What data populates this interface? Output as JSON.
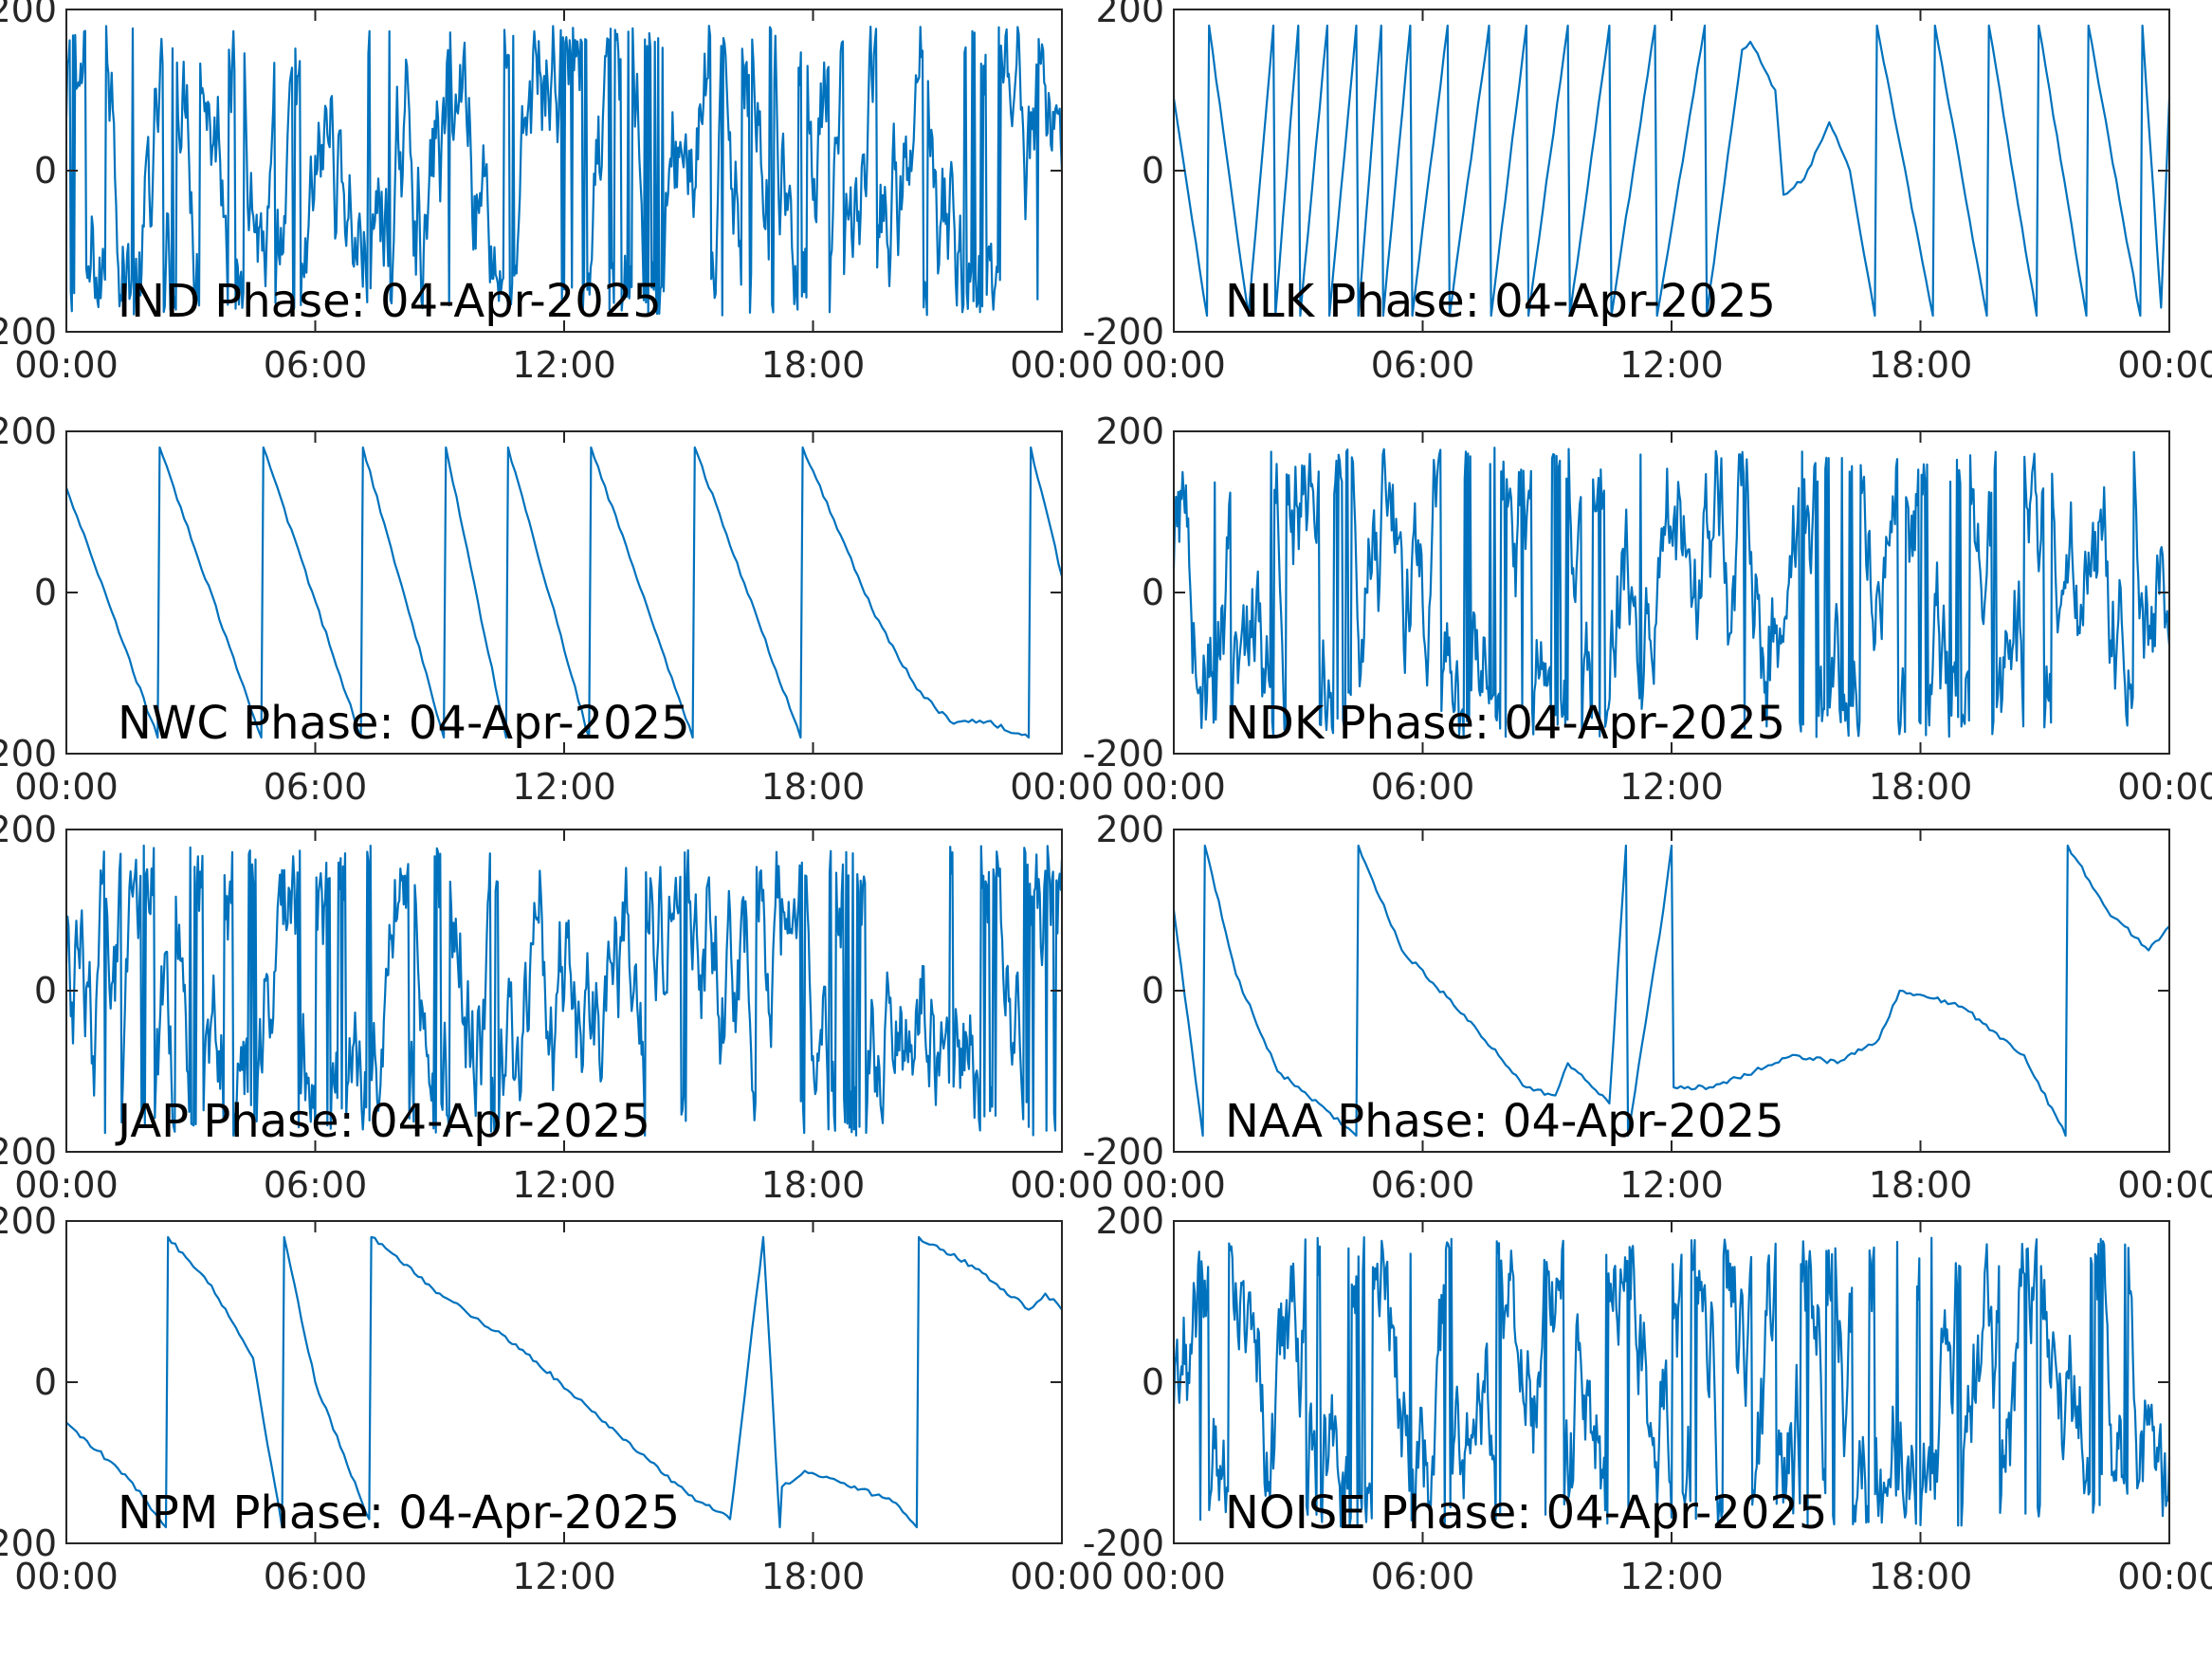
{
  "line_color": "#0072BD",
  "axis_color": "#262626",
  "chart_data": [
    {
      "type": "line",
      "title": "IND Phase: 04-Apr-2025",
      "xlim": [
        "00:00",
        "24:00"
      ],
      "x_ticks": [
        "00:00",
        "06:00",
        "12:00",
        "18:00",
        "00:00"
      ],
      "ylim": [
        -200,
        200
      ],
      "y_ticks": [
        "-200",
        "0",
        "200"
      ],
      "grid": false,
      "pattern": "wrapped-noise",
      "series": [
        {
          "x": [
            0,
            2,
            4,
            6,
            8,
            10,
            12.2,
            14,
            16,
            18,
            19.5,
            21,
            22.5,
            24
          ],
          "y": [
            50,
            -20,
            60,
            -60,
            -90,
            10,
            180,
            -180,
            180,
            -180,
            40,
            20,
            0,
            -30
          ]
        }
      ]
    },
    {
      "type": "line",
      "title": "NLK Phase: 04-Apr-2025",
      "xlim": [
        "00:00",
        "24:00"
      ],
      "x_ticks": [
        "00:00",
        "06:00",
        "12:00",
        "18:00",
        "00:00"
      ],
      "ylim": [
        -200,
        200
      ],
      "y_ticks": [
        "-200",
        "0",
        "200"
      ],
      "grid": false,
      "pattern": "drift",
      "series": [
        {
          "x": [
            0,
            0.8,
            0.85,
            1.8,
            2.4,
            2.45,
            3.0,
            3.05,
            3.7,
            3.75,
            4.4,
            4.45,
            5.0,
            5.05,
            5.7,
            5.75,
            6.6,
            6.65,
            7.6,
            7.65,
            8.5,
            8.55,
            9.5,
            9.55,
            10.5,
            10.55,
            11.6,
            11.65,
            12.8,
            12.85,
            13.7,
            13.9,
            14.5,
            14.7,
            15.2,
            15.8,
            16.3,
            16.9,
            16.95,
            18.3,
            18.35,
            19.6,
            19.65,
            20.8,
            20.85,
            22.0,
            22.05,
            23.3,
            23.35,
            23.8,
            24
          ],
          "y": [
            90,
            -180,
            180,
            -180,
            180,
            -180,
            180,
            -180,
            180,
            -180,
            180,
            -180,
            180,
            -180,
            180,
            -180,
            180,
            -180,
            180,
            -180,
            180,
            -180,
            180,
            -180,
            180,
            -180,
            180,
            -180,
            180,
            -180,
            150,
            160,
            100,
            -30,
            -10,
            60,
            0,
            -180,
            180,
            -180,
            180,
            -180,
            180,
            -180,
            180,
            -180,
            180,
            -180,
            180,
            -170,
            90
          ]
        }
      ]
    },
    {
      "type": "line",
      "title": "NWC Phase: 04-Apr-2025",
      "xlim": [
        "00:00",
        "24:00"
      ],
      "x_ticks": [
        "00:00",
        "06:00",
        "12:00",
        "18:00",
        "00:00"
      ],
      "ylim": [
        -200,
        200
      ],
      "y_ticks": [
        "-200",
        "0",
        "200"
      ],
      "grid": false,
      "pattern": "drift",
      "series": [
        {
          "x": [
            0,
            2.2,
            2.25,
            4.7,
            4.75,
            7.1,
            7.15,
            9.1,
            9.15,
            10.6,
            10.65,
            12.6,
            12.65,
            15.1,
            15.15,
            17.7,
            17.75,
            19.5,
            20.5,
            21.3,
            22.2,
            23.2,
            23.25,
            24
          ],
          "y": [
            130,
            -180,
            180,
            -180,
            180,
            -180,
            180,
            -180,
            180,
            -180,
            180,
            -180,
            180,
            -180,
            180,
            -180,
            180,
            -30,
            -120,
            -160,
            -160,
            -180,
            180,
            20
          ]
        }
      ]
    },
    {
      "type": "line",
      "title": "NDK Phase: 04-Apr-2025",
      "xlim": [
        "00:00",
        "24:00"
      ],
      "x_ticks": [
        "00:00",
        "06:00",
        "12:00",
        "18:00",
        "00:00"
      ],
      "ylim": [
        -200,
        200
      ],
      "y_ticks": [
        "-200",
        "0",
        "200"
      ],
      "grid": false,
      "pattern": "wrapped-noise",
      "series": [
        {
          "x": [
            0,
            3,
            6,
            9,
            12,
            15,
            18,
            21,
            24
          ],
          "y": [
            0,
            40,
            -20,
            60,
            80,
            -40,
            20,
            60,
            0
          ]
        }
      ]
    },
    {
      "type": "line",
      "title": "JAP Phase: 04-Apr-2025",
      "xlim": [
        "00:00",
        "24:00"
      ],
      "x_ticks": [
        "00:00",
        "06:00",
        "12:00",
        "18:00",
        "00:00"
      ],
      "ylim": [
        -200,
        200
      ],
      "y_ticks": [
        "-200",
        "0",
        "200"
      ],
      "grid": false,
      "pattern": "wrapped-noise",
      "series": [
        {
          "x": [
            0,
            3,
            6,
            9,
            12,
            15,
            18,
            21,
            24
          ],
          "y": [
            0,
            -60,
            20,
            -30,
            40,
            -10,
            30,
            -50,
            0
          ]
        }
      ]
    },
    {
      "type": "line",
      "title": "NAA Phase: 04-Apr-2025",
      "xlim": [
        "00:00",
        "24:00"
      ],
      "x_ticks": [
        "00:00",
        "06:00",
        "12:00",
        "18:00",
        "00:00"
      ],
      "ylim": [
        -200,
        200
      ],
      "y_ticks": [
        "-200",
        "0",
        "200"
      ],
      "grid": false,
      "pattern": "drift",
      "series": [
        {
          "x": [
            0,
            0.7,
            0.75,
            1.5,
            2.5,
            3.5,
            4.4,
            4.45,
            5.5,
            7.0,
            8.5,
            9.2,
            9.5,
            10.5,
            10.9,
            10.95,
            11.8,
            12.0,
            12.05,
            13.0,
            14.0,
            15.0,
            16.0,
            17.0,
            17.5,
            18.0,
            19.0,
            20.5,
            21.5,
            21.55,
            22.5,
            23.5,
            24
          ],
          "y": [
            100,
            -180,
            180,
            20,
            -100,
            -140,
            -180,
            180,
            50,
            -30,
            -120,
            -130,
            -90,
            -140,
            180,
            -180,
            100,
            180,
            -120,
            -120,
            -100,
            -80,
            -90,
            -60,
            0,
            -5,
            -20,
            -80,
            -180,
            180,
            100,
            50,
            80
          ]
        }
      ]
    },
    {
      "type": "line",
      "title": "NPM Phase: 04-Apr-2025",
      "xlim": [
        "00:00",
        "24:00"
      ],
      "x_ticks": [
        "00:00",
        "06:00",
        "12:00",
        "18:00",
        "00:00"
      ],
      "ylim": [
        -200,
        200
      ],
      "y_ticks": [
        "-200",
        "0",
        "200"
      ],
      "grid": false,
      "pattern": "drift",
      "series": [
        {
          "x": [
            0,
            1.5,
            2.4,
            2.45,
            3.5,
            4.5,
            5.2,
            5.25,
            6.0,
            7.3,
            7.35,
            9.0,
            11.0,
            13.0,
            15.0,
            16.0,
            16.8,
            17.2,
            17.25,
            17.8,
            18.5,
            20.0,
            20.5,
            20.55,
            22.0,
            23.2,
            23.6,
            24
          ],
          "y": [
            -50,
            -120,
            -180,
            180,
            120,
            30,
            -180,
            180,
            0,
            -170,
            180,
            110,
            40,
            -50,
            -140,
            -170,
            180,
            -180,
            -130,
            -110,
            -120,
            -150,
            -180,
            180,
            140,
            90,
            110,
            90
          ]
        }
      ]
    },
    {
      "type": "line",
      "title": "NOISE Phase: 04-Apr-2025",
      "xlim": [
        "00:00",
        "24:00"
      ],
      "x_ticks": [
        "00:00",
        "06:00",
        "12:00",
        "18:00",
        "00:00"
      ],
      "ylim": [
        -200,
        200
      ],
      "y_ticks": [
        "-200",
        "0",
        "200"
      ],
      "grid": false,
      "pattern": "wrapped-noise",
      "series": [
        {
          "x": [
            0,
            3,
            6,
            9,
            12,
            15,
            18,
            21,
            24
          ],
          "y": [
            -80,
            40,
            -20,
            30,
            60,
            -40,
            20,
            40,
            -60
          ]
        }
      ]
    }
  ]
}
